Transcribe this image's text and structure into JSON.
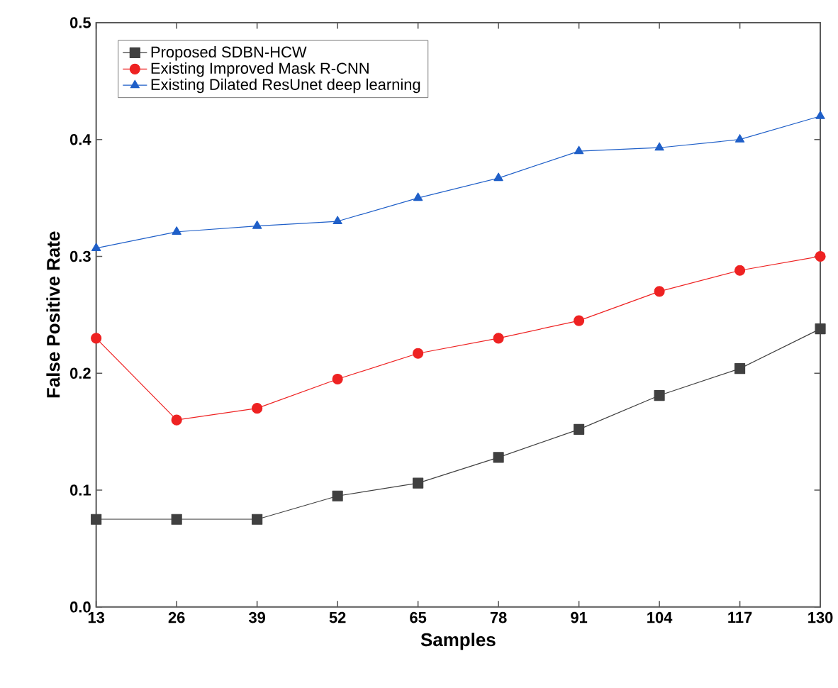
{
  "chart_data": {
    "type": "line",
    "xlabel": "Samples",
    "ylabel": "False Positive Rate",
    "x": [
      13,
      26,
      39,
      52,
      65,
      78,
      91,
      104,
      117,
      130
    ],
    "xlim": [
      13,
      130
    ],
    "xticks": [
      13,
      26,
      39,
      52,
      65,
      78,
      91,
      104,
      117,
      130
    ],
    "ylim": [
      0,
      0.5
    ],
    "yticks": [
      {
        "value": 0,
        "label": "0.0"
      },
      0.1,
      0.2,
      0.3,
      0.4,
      0.5
    ],
    "legend": "top left",
    "grid": false,
    "line_style": "solid",
    "series": [
      {
        "name": "Proposed SDBN-HCW",
        "color": "#404040",
        "marker": "square",
        "values": [
          0.075,
          0.075,
          0.075,
          0.095,
          0.106,
          0.128,
          0.152,
          0.181,
          0.204,
          0.238
        ]
      },
      {
        "name": "Existing Improved Mask R-CNN",
        "color": "#ee2222",
        "marker": "circle",
        "values": [
          0.23,
          0.16,
          0.17,
          0.195,
          0.217,
          0.23,
          0.245,
          0.27,
          0.288,
          0.3
        ]
      },
      {
        "name": "Existing Dilated  ResUnet deep learning",
        "color": "#1f5fc8",
        "marker": "triangle",
        "values": [
          0.307,
          0.321,
          0.326,
          0.33,
          0.35,
          0.367,
          0.39,
          0.393,
          0.4,
          0.42
        ]
      }
    ]
  }
}
